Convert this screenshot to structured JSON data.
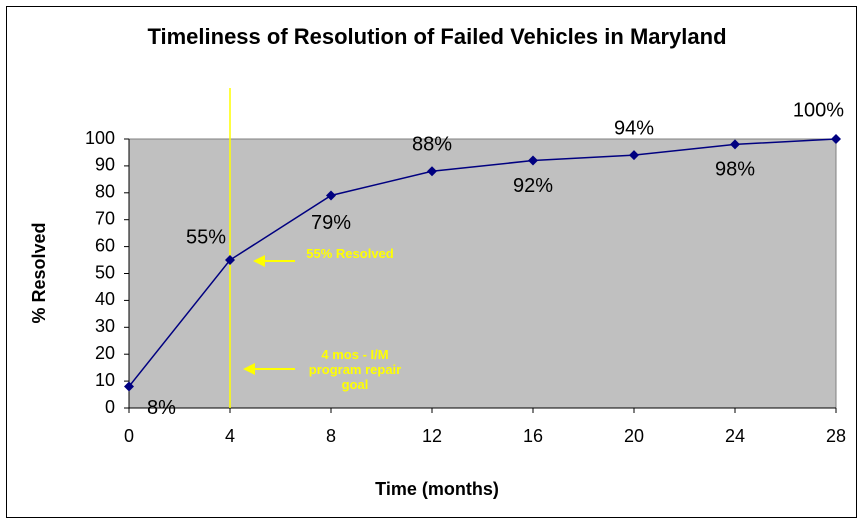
{
  "chart_data": {
    "type": "line",
    "title": "Timeliness of Resolution of Failed Vehicles in Maryland",
    "xlabel": "Time (months)",
    "ylabel": "% Resolved",
    "x": [
      0,
      4,
      8,
      12,
      16,
      20,
      24,
      28
    ],
    "series": [
      {
        "name": "% Resolved",
        "color": "#000080",
        "values": [
          8,
          55,
          79,
          88,
          92,
          94,
          98,
          100
        ],
        "value_labels": [
          "8%",
          "55%",
          "79%",
          "88%",
          "92%",
          "94%",
          "98%",
          "100%"
        ]
      }
    ],
    "xlim": [
      0,
      28
    ],
    "xticks": [
      0,
      4,
      8,
      12,
      16,
      20,
      24,
      28
    ],
    "ylim": [
      0,
      100
    ],
    "yticks": [
      0,
      10,
      20,
      30,
      40,
      50,
      60,
      70,
      80,
      90,
      100
    ],
    "plot_background": "#c0c0c0",
    "reference_line": {
      "x": 4,
      "color": "#ffff00"
    },
    "annotations": [
      {
        "text": "55% Resolved",
        "color": "#ffff00"
      },
      {
        "text": "4 mos - I/M program repair goal",
        "color": "#ffff00"
      }
    ]
  }
}
